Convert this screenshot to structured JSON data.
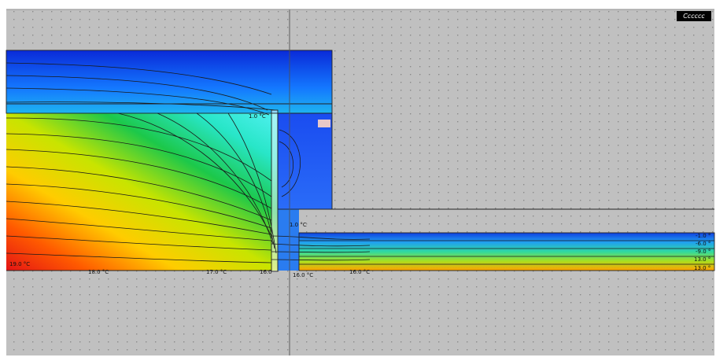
{
  "viewport": {
    "corner_label": "Cccccc"
  },
  "colors": {
    "canvas_bg": "#c0c0c0",
    "grid_dot": "#8a8a8a",
    "crosshair": "#505050",
    "hot": "#e41414",
    "cold": "#0a2ad8"
  },
  "isotherm_labels": {
    "warm_edge": "19.0 °C",
    "bottom_1": "18.0 °C",
    "bottom_2": "17.0 °C",
    "bottom_3": "16.0",
    "bottom_4": "16.0 °C",
    "bottom_5": "16.0 °C",
    "corner": "1.0 °C",
    "top_mid": "1.0 °C",
    "right_1": "-1.0 °",
    "right_2": "-6.0 °",
    "right_3": "-9.0 °",
    "right_4": "13.0 °",
    "right_5": "13.0 °"
  }
}
